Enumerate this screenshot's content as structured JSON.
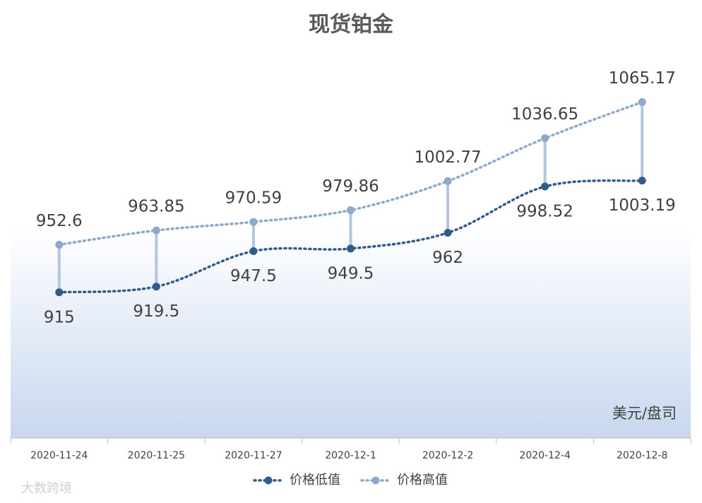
{
  "chart_data": {
    "type": "line",
    "title": "现货铂金",
    "categories": [
      "2020-11-24",
      "2020-11-25",
      "2020-11-27",
      "2020-12-1",
      "2020-12-2",
      "2020-12-4",
      "2020-12-8"
    ],
    "series": [
      {
        "name": "价格低值",
        "color": "#2f5b8d",
        "values": [
          915,
          919.5,
          947.5,
          949.5,
          962,
          998.52,
          1003.19
        ]
      },
      {
        "name": "价格高值",
        "color": "#8ea8cb",
        "values": [
          952.6,
          963.85,
          970.59,
          979.86,
          1002.77,
          1036.65,
          1065.17
        ]
      }
    ],
    "ylim": [
      800,
      1100
    ],
    "smooth": true,
    "hi_lo_lines": true,
    "hi_lo_color": "#b4c6df",
    "legend": "bottom",
    "unit_label": "美元/盘司",
    "watermark": "大数跨境"
  }
}
